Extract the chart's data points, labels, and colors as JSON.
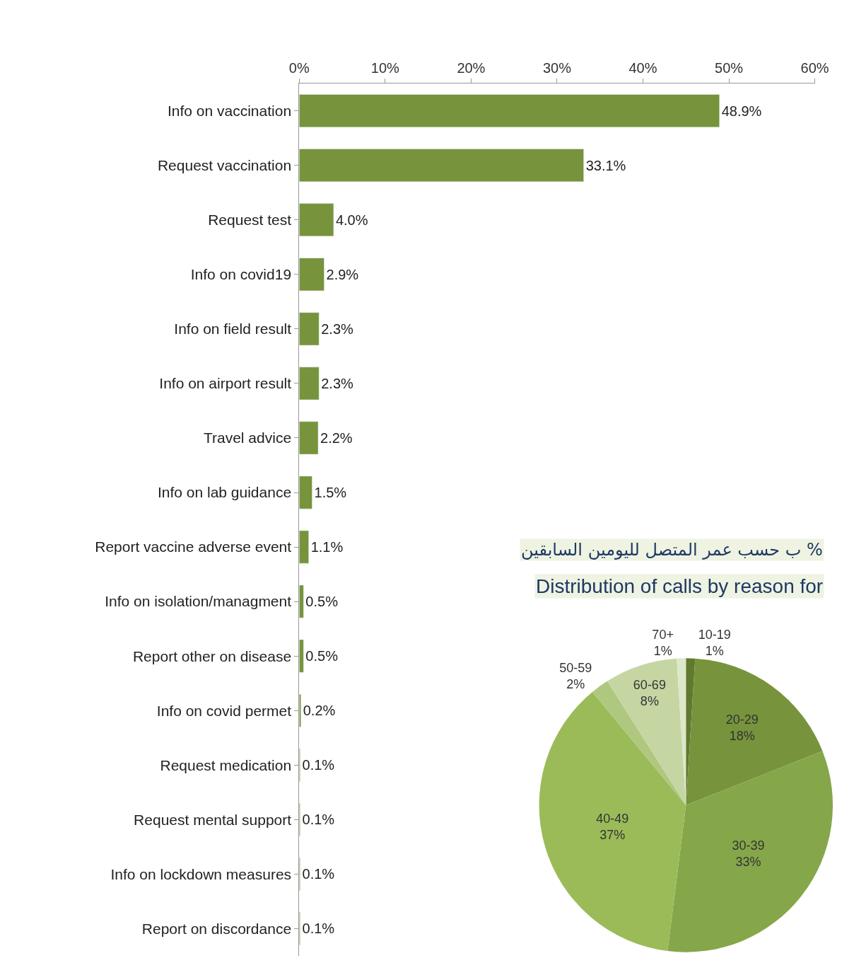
{
  "chart_data": [
    {
      "type": "bar",
      "orientation": "horizontal",
      "categories": [
        "Info on vaccination",
        "Request vaccination",
        "Request test",
        "Info on covid19",
        "Info on field result",
        "Info on airport result",
        "Travel advice",
        "Info on lab guidance",
        "Report vaccine adverse event",
        "Info on isolation/managment",
        "Report other on disease",
        "Info on covid permet",
        "Request medication",
        "Request mental support",
        "Info on lockdown measures",
        "Report on discordance"
      ],
      "values": [
        48.9,
        33.1,
        4.0,
        2.9,
        2.3,
        2.3,
        2.2,
        1.5,
        1.1,
        0.5,
        0.5,
        0.2,
        0.1,
        0.1,
        0.1,
        0.1
      ],
      "value_labels": [
        "48.9%",
        "33.1%",
        "4.0%",
        "2.9%",
        "2.3%",
        "2.3%",
        "2.2%",
        "1.5%",
        "1.1%",
        "0.5%",
        "0.5%",
        "0.2%",
        "0.1%",
        "0.1%",
        "0.1%",
        "0.1%"
      ],
      "color": "#77933c",
      "xlim": [
        0,
        60
      ],
      "xticks": [
        {
          "value": 0,
          "label": "0%"
        },
        {
          "value": 10,
          "label": "10%"
        },
        {
          "value": 20,
          "label": "20%"
        },
        {
          "value": 30,
          "label": "30%"
        },
        {
          "value": 40,
          "label": "40%"
        },
        {
          "value": 50,
          "label": "50%"
        },
        {
          "value": 60,
          "label": "60%"
        }
      ],
      "legend": false
    },
    {
      "type": "pie",
      "title": "ب حسب عمر المتصل لليومين السابقين %",
      "subtitle": "Distribution of calls by reason for",
      "categories": [
        "10-19",
        "20-29",
        "30-39",
        "40-49",
        "50-59",
        "60-69",
        "70+"
      ],
      "values": [
        1,
        18,
        33,
        37,
        2,
        8,
        1
      ],
      "value_labels": [
        "1%",
        "18%",
        "33%",
        "37%",
        "2%",
        "8%",
        "1%"
      ],
      "colors": [
        "#5f7a2e",
        "#77933c",
        "#86a64a",
        "#9bbb59",
        "#afc77f",
        "#c6d6a3",
        "#dde7c9"
      ],
      "legend": false
    }
  ]
}
